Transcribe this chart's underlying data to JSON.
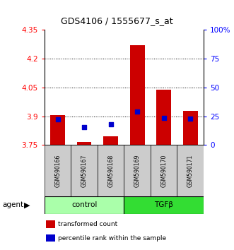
{
  "title": "GDS4106 / 1555677_s_at",
  "samples": [
    "GSM590166",
    "GSM590167",
    "GSM590168",
    "GSM590169",
    "GSM590170",
    "GSM590171"
  ],
  "groups": [
    "control",
    "control",
    "control",
    "TGFβ",
    "TGFβ",
    "TGFβ"
  ],
  "group_labels": [
    "control",
    "TGFβ"
  ],
  "group_colors": [
    "#aaffaa",
    "#33dd33"
  ],
  "bar_bottom": 3.75,
  "bar_tops": [
    3.905,
    3.765,
    3.797,
    4.272,
    4.04,
    3.928
  ],
  "percentile_values": [
    3.885,
    3.845,
    3.857,
    3.923,
    3.893,
    3.886
  ],
  "ylim_left": [
    3.75,
    4.35
  ],
  "yticks_left": [
    3.75,
    3.9,
    4.05,
    4.2,
    4.35
  ],
  "ytick_labels_left": [
    "3.75",
    "3.9",
    "4.05",
    "4.2",
    "4.35"
  ],
  "ylim_right": [
    0,
    100
  ],
  "yticks_right": [
    0,
    25,
    50,
    75,
    100
  ],
  "ytick_labels_right": [
    "0",
    "25",
    "50",
    "75",
    "100%"
  ],
  "bar_color": "#cc0000",
  "percentile_color": "#0000cc",
  "grid_yticks": [
    3.9,
    4.05,
    4.2
  ],
  "agent_label": "agent",
  "legend_items": [
    "transformed count",
    "percentile rank within the sample"
  ],
  "legend_colors": [
    "#cc0000",
    "#0000cc"
  ],
  "sample_box_color": "#cccccc",
  "fig_width": 3.31,
  "fig_height": 3.54,
  "dpi": 100
}
